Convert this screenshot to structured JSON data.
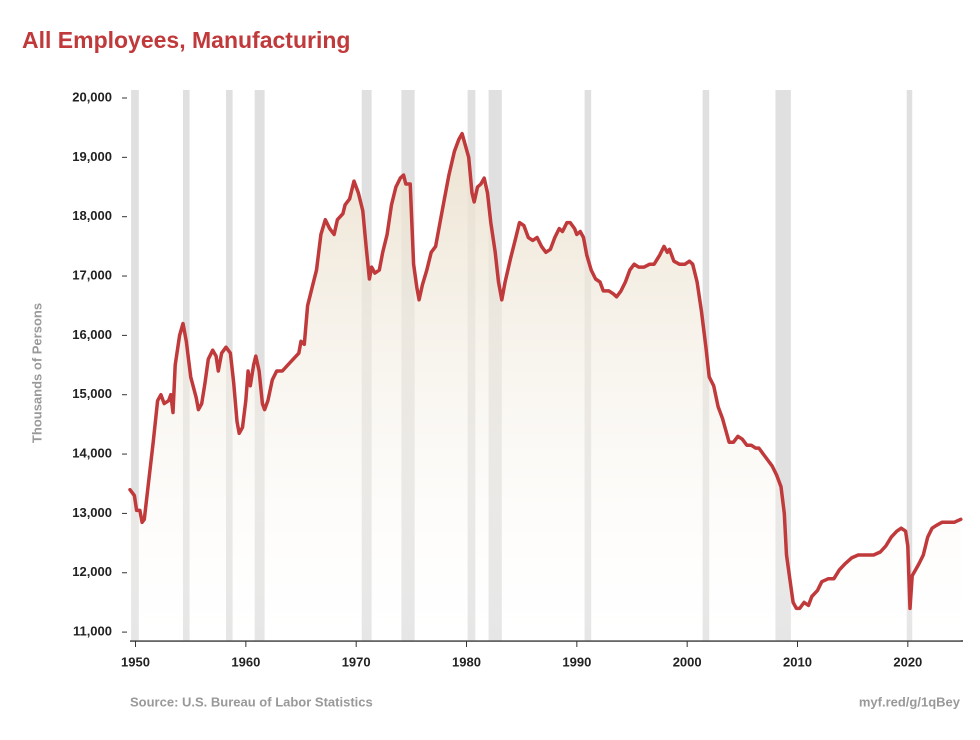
{
  "chart_data": {
    "type": "line",
    "title": "All Employees, Manufacturing",
    "y_label": "Thousands of Persons",
    "source": "Source: U.S. Bureau of Labor Statistics",
    "link": "myf.red/g/1qBey",
    "color": "#c0393b",
    "fill_color": "#eadfcb",
    "recession_color": "#e0e0e0",
    "xlim": [
      1949.5,
      2025
    ],
    "ylim": [
      10850,
      20000
    ],
    "xticks": [
      1950,
      1960,
      1970,
      1980,
      1990,
      2000,
      2010,
      2020
    ],
    "yticks": [
      {
        "value": 11000,
        "label": "11,000"
      },
      {
        "value": 12000,
        "label": "12,000"
      },
      {
        "value": 13000,
        "label": "13,000"
      },
      {
        "value": 14000,
        "label": "14,000"
      },
      {
        "value": 15000,
        "label": "15,000"
      },
      {
        "value": 16000,
        "label": "16,000"
      },
      {
        "value": 17000,
        "label": "17,000"
      },
      {
        "value": 18000,
        "label": "18,000"
      },
      {
        "value": 19000,
        "label": "19,000"
      },
      {
        "value": 20000,
        "label": "20,000"
      }
    ],
    "recessions": [
      [
        1949.6,
        1950.3
      ],
      [
        1954.3,
        1954.9
      ],
      [
        1958.2,
        1958.8
      ],
      [
        1960.8,
        1961.7
      ],
      [
        1970.5,
        1971.4
      ],
      [
        1974.1,
        1975.3
      ],
      [
        1980.1,
        1980.8
      ],
      [
        1982.0,
        1983.2
      ],
      [
        1990.7,
        1991.3
      ],
      [
        2001.4,
        2002.0
      ],
      [
        2008.0,
        2009.4
      ],
      [
        2019.9,
        2020.4
      ]
    ],
    "x": [
      1949.5,
      1949.9,
      1950.1,
      1950.4,
      1950.6,
      1950.8,
      1951.1,
      1951.6,
      1952.0,
      1952.3,
      1952.6,
      1953.0,
      1953.2,
      1953.4,
      1953.6,
      1954.0,
      1954.3,
      1954.6,
      1955.0,
      1955.5,
      1955.7,
      1956.0,
      1956.3,
      1956.6,
      1957.0,
      1957.3,
      1957.5,
      1957.8,
      1958.2,
      1958.6,
      1958.9,
      1959.2,
      1959.4,
      1959.7,
      1960.0,
      1960.2,
      1960.4,
      1960.7,
      1960.9,
      1961.2,
      1961.5,
      1961.7,
      1962.0,
      1962.4,
      1962.8,
      1963.3,
      1963.8,
      1964.3,
      1964.8,
      1965.0,
      1965.3,
      1965.6,
      1966.0,
      1966.4,
      1966.8,
      1967.2,
      1967.6,
      1968.0,
      1968.3,
      1968.8,
      1969.0,
      1969.4,
      1969.8,
      1970.2,
      1970.6,
      1970.9,
      1971.2,
      1971.4,
      1971.7,
      1972.1,
      1972.4,
      1972.8,
      1973.2,
      1973.6,
      1974.0,
      1974.3,
      1974.5,
      1974.9,
      1975.2,
      1975.5,
      1975.7,
      1976.0,
      1976.4,
      1976.8,
      1977.2,
      1977.6,
      1978.0,
      1978.4,
      1978.9,
      1979.3,
      1979.6,
      1979.9,
      1980.2,
      1980.5,
      1980.7,
      1981.0,
      1981.3,
      1981.6,
      1981.9,
      1982.2,
      1982.6,
      1982.9,
      1983.2,
      1983.5,
      1984.0,
      1984.4,
      1984.8,
      1985.2,
      1985.6,
      1986.0,
      1986.4,
      1986.8,
      1987.2,
      1987.6,
      1988.0,
      1988.4,
      1988.7,
      1989.1,
      1989.4,
      1989.8,
      1990.0,
      1990.3,
      1990.6,
      1990.9,
      1991.3,
      1991.7,
      1992.1,
      1992.4,
      1992.9,
      1993.3,
      1993.6,
      1994.0,
      1994.4,
      1994.8,
      1995.2,
      1995.6,
      1996.1,
      1996.6,
      1997.0,
      1997.5,
      1997.9,
      1998.2,
      1998.4,
      1998.8,
      1999.3,
      1999.8,
      2000.2,
      2000.5,
      2000.9,
      2001.3,
      2001.7,
      2002.0,
      2002.4,
      2002.8,
      2003.2,
      2003.5,
      2003.8,
      2004.2,
      2004.6,
      2005.0,
      2005.4,
      2005.8,
      2006.2,
      2006.5,
      2006.9,
      2007.3,
      2007.7,
      2008.1,
      2008.5,
      2008.8,
      2009.0,
      2009.3,
      2009.6,
      2009.9,
      2010.2,
      2010.6,
      2011.0,
      2011.3,
      2011.8,
      2012.2,
      2012.8,
      2013.3,
      2013.8,
      2014.3,
      2014.9,
      2015.5,
      2016.2,
      2016.9,
      2017.5,
      2018.0,
      2018.5,
      2019.0,
      2019.4,
      2019.8,
      2020.0,
      2020.2,
      2020.4,
      2020.7,
      2021.0,
      2021.4,
      2021.8,
      2022.2,
      2022.6,
      2023.1,
      2023.6,
      2024.2,
      2024.8
    ],
    "values": [
      13400,
      13300,
      13050,
      13050,
      12850,
      12900,
      13400,
      14200,
      14900,
      15000,
      14850,
      14900,
      15000,
      14700,
      15500,
      16000,
      16200,
      15900,
      15300,
      14950,
      14750,
      14850,
      15200,
      15600,
      15750,
      15650,
      15400,
      15700,
      15800,
      15700,
      15200,
      14550,
      14350,
      14450,
      14900,
      15400,
      15150,
      15500,
      15650,
      15400,
      14850,
      14750,
      14900,
      15250,
      15400,
      15400,
      15500,
      15600,
      15700,
      15900,
      15850,
      16500,
      16800,
      17100,
      17700,
      17950,
      17800,
      17700,
      17950,
      18050,
      18200,
      18300,
      18600,
      18400,
      18100,
      17500,
      16950,
      17150,
      17050,
      17100,
      17400,
      17700,
      18200,
      18500,
      18650,
      18700,
      18550,
      18550,
      17200,
      16800,
      16600,
      16850,
      17100,
      17400,
      17500,
      17900,
      18300,
      18700,
      19100,
      19300,
      19400,
      19200,
      19000,
      18400,
      18250,
      18500,
      18550,
      18650,
      18400,
      17900,
      17400,
      16900,
      16600,
      16900,
      17300,
      17600,
      17900,
      17850,
      17650,
      17600,
      17650,
      17500,
      17400,
      17450,
      17650,
      17800,
      17750,
      17900,
      17900,
      17800,
      17700,
      17750,
      17650,
      17350,
      17100,
      16950,
      16900,
      16750,
      16750,
      16700,
      16650,
      16750,
      16900,
      17100,
      17200,
      17150,
      17150,
      17200,
      17200,
      17350,
      17500,
      17400,
      17450,
      17250,
      17200,
      17200,
      17250,
      17200,
      16900,
      16400,
      15800,
      15300,
      15150,
      14800,
      14600,
      14400,
      14200,
      14200,
      14300,
      14250,
      14150,
      14150,
      14100,
      14100,
      14000,
      13900,
      13800,
      13650,
      13450,
      13000,
      12300,
      11900,
      11500,
      11400,
      11400,
      11500,
      11450,
      11600,
      11700,
      11850,
      11900,
      11900,
      12050,
      12150,
      12250,
      12300,
      12300,
      12300,
      12350,
      12450,
      12600,
      12700,
      12750,
      12700,
      12450,
      11400,
      11950,
      12050,
      12150,
      12300,
      12600,
      12750,
      12800,
      12850,
      12850,
      12850,
      12900
    ]
  }
}
